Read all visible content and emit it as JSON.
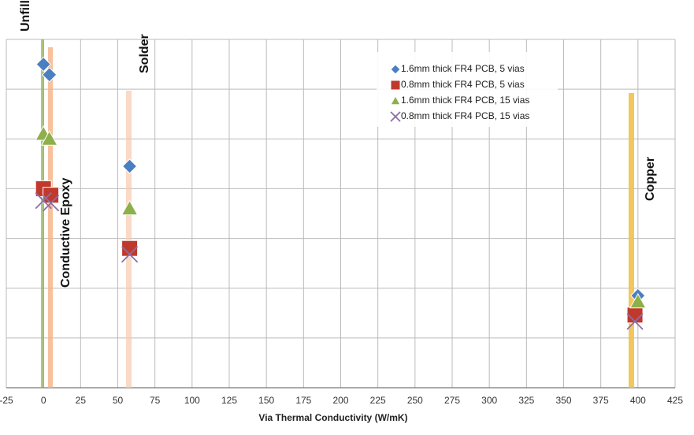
{
  "chart_data": {
    "type": "scatter",
    "xlabel": "Via Thermal Conductivity (W/mK)",
    "xlim": [
      -25,
      425
    ],
    "xticks": [
      -25,
      0,
      25,
      50,
      75,
      100,
      125,
      150,
      175,
      200,
      225,
      250,
      275,
      300,
      325,
      350,
      375,
      400,
      425
    ],
    "ylim": [
      0,
      7
    ],
    "yticks": [
      0,
      1,
      2,
      3,
      4,
      5,
      6,
      7
    ],
    "grid": true,
    "legend": "upper right",
    "annotations": [
      "Unfilled",
      "Solder",
      "Conductive Epoxy",
      "Copper"
    ],
    "series": [
      {
        "name": "1.6mm thick FR4 PCB, 5 vias",
        "marker": "diamond",
        "color": "#4a7fc1",
        "x": [
          0,
          4,
          58,
          400
        ],
        "values": [
          6.5,
          6.29,
          4.45,
          1.85
        ]
      },
      {
        "name": "0.8mm thick FR4 PCB, 5 vias",
        "marker": "square",
        "color": "#c0392b",
        "x": [
          0,
          5,
          58,
          398
        ],
        "values": [
          4.0,
          3.87,
          2.8,
          1.46
        ]
      },
      {
        "name": "1.6mm thick FR4 PCB, 15 vias",
        "marker": "triangle",
        "color": "#8db04a",
        "x": [
          0,
          4,
          58,
          400
        ],
        "values": [
          5.1,
          5.0,
          3.6,
          1.73
        ]
      },
      {
        "name": "0.8mm thick FR4 PCB, 15 vias",
        "marker": "x",
        "color": "#8a6fa8",
        "x": [
          0,
          5,
          58,
          398
        ],
        "values": [
          3.76,
          3.71,
          2.68,
          1.33
        ]
      }
    ]
  }
}
